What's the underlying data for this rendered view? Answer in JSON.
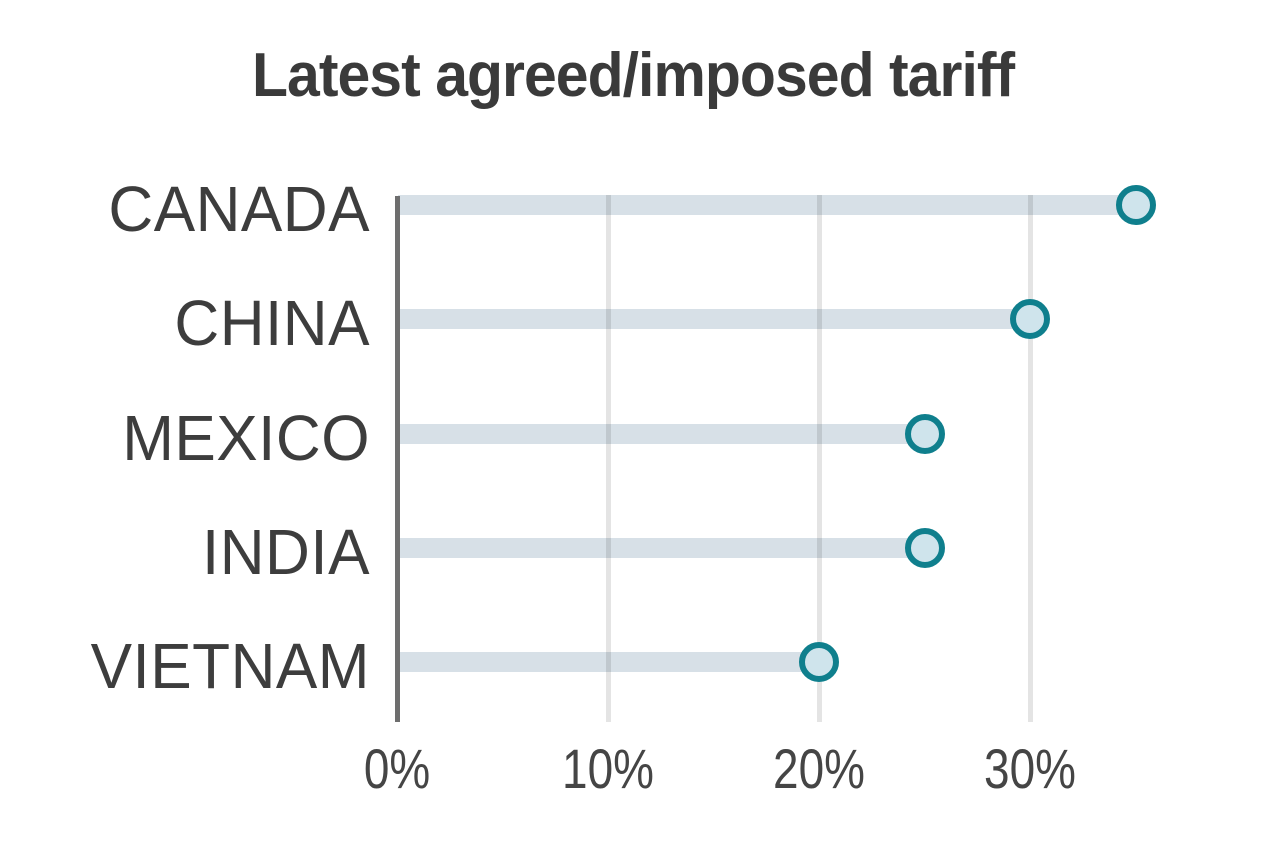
{
  "title": "Latest agreed/imposed tariff",
  "chart_data": {
    "type": "bar",
    "variant": "horizontal-lollipop",
    "title": "Latest agreed/imposed tariff",
    "categories": [
      "CANADA",
      "CHINA",
      "MEXICO",
      "INDIA",
      "VIETNAM"
    ],
    "values": [
      35,
      30,
      25,
      25,
      20
    ],
    "unit": "%",
    "xlabel": "",
    "ylabel": "",
    "xlim": [
      0,
      36
    ],
    "xtick_values": [
      0,
      10,
      20,
      30
    ],
    "xtick_labels": [
      "0%",
      "10%",
      "20%",
      "30%"
    ],
    "grid": true,
    "legend": "none",
    "colors": {
      "bar": "#d7e0e7",
      "dot_fill": "#cfe4ec",
      "dot_stroke": "#0f7f8d",
      "axis_line": "#6e6e6e",
      "gridline": "#e4e4e4",
      "title_text": "#3a3a3a",
      "label_text": "#3d3d3d",
      "tick_text": "#454545"
    }
  }
}
